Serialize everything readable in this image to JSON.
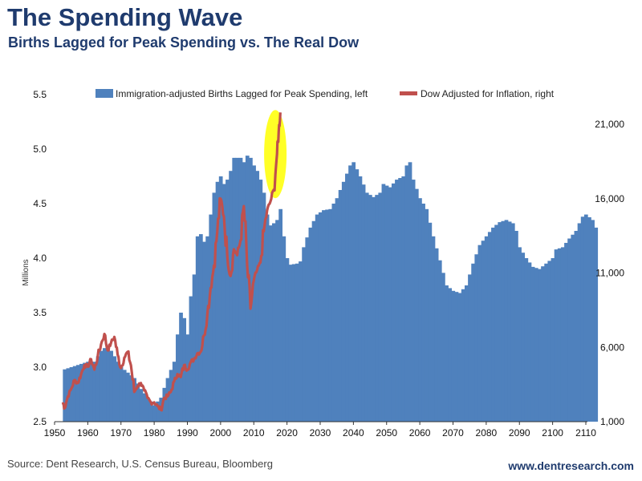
{
  "header": {
    "title": "The Spending Wave",
    "subtitle": "Births Lagged for Peak Spending vs. The Real Dow"
  },
  "footer": {
    "source": "Source: Dent Research, U.S. Census Bureau, Bloomberg",
    "website": "www.dentresearch.com"
  },
  "colors": {
    "title": "#1f3b6e",
    "bars": "#4f81bd",
    "dow_line": "#c0504d",
    "highlight": "#ffff00"
  },
  "chart_data": {
    "type": "bar+line",
    "title": "The Spending Wave",
    "ylabel_left": "Millions",
    "ylim_left": [
      2.5,
      5.5
    ],
    "ylim_right": [
      1000,
      23000
    ],
    "xlim": [
      1950,
      2110
    ],
    "x_ticks": [
      "1950",
      "1960",
      "1970",
      "1980",
      "1990",
      "2000",
      "2010",
      "2020",
      "2030",
      "2040",
      "2050",
      "2060",
      "2070",
      "2080",
      "2090",
      "2100",
      "2110"
    ],
    "y_left_ticks": [
      "2.5",
      "3.0",
      "3.5",
      "4.0",
      "4.5",
      "5.0",
      "5.5"
    ],
    "y_right_ticks": [
      "1,000",
      "6,000",
      "11,000",
      "16,000",
      "21,000"
    ],
    "legend": [
      {
        "label": "Immigration-adjusted Births Lagged for Peak Spending, left",
        "kind": "bar"
      },
      {
        "label": "Dow Adjusted for Inflation, right",
        "kind": "line"
      }
    ],
    "series": [
      {
        "name": "Immigration-adjusted Births Lagged for Peak Spending",
        "axis": "left",
        "kind": "bar",
        "points": [
          [
            1953,
            2.98
          ],
          [
            1955,
            3.0
          ],
          [
            1957,
            3.02
          ],
          [
            1960,
            3.05
          ],
          [
            1962,
            3.05
          ],
          [
            1964,
            3.15
          ],
          [
            1966,
            3.2
          ],
          [
            1968,
            3.1
          ],
          [
            1970,
            3.0
          ],
          [
            1972,
            2.95
          ],
          [
            1974,
            2.9
          ],
          [
            1976,
            2.8
          ],
          [
            1978,
            2.72
          ],
          [
            1980,
            2.65
          ],
          [
            1982,
            2.72
          ],
          [
            1984,
            2.9
          ],
          [
            1986,
            3.05
          ],
          [
            1987,
            3.3
          ],
          [
            1988,
            3.5
          ],
          [
            1989,
            3.45
          ],
          [
            1990,
            3.3
          ],
          [
            1991,
            3.65
          ],
          [
            1992,
            3.85
          ],
          [
            1993,
            4.2
          ],
          [
            1994,
            4.22
          ],
          [
            1995,
            4.15
          ],
          [
            1996,
            4.2
          ],
          [
            1997,
            4.4
          ],
          [
            1998,
            4.6
          ],
          [
            1999,
            4.7
          ],
          [
            2000,
            4.75
          ],
          [
            2001,
            4.68
          ],
          [
            2002,
            4.72
          ],
          [
            2003,
            4.8
          ],
          [
            2004,
            4.92
          ],
          [
            2006,
            4.92
          ],
          [
            2007,
            4.88
          ],
          [
            2008,
            4.94
          ],
          [
            2009,
            4.92
          ],
          [
            2010,
            4.85
          ],
          [
            2011,
            4.8
          ],
          [
            2012,
            4.72
          ],
          [
            2013,
            4.6
          ],
          [
            2014,
            4.4
          ],
          [
            2015,
            4.3
          ],
          [
            2016,
            4.32
          ],
          [
            2017,
            4.35
          ],
          [
            2018,
            4.45
          ],
          [
            2019,
            4.2
          ],
          [
            2020,
            4.0
          ],
          [
            2021,
            3.94
          ],
          [
            2023,
            3.95
          ],
          [
            2024,
            3.97
          ],
          [
            2025,
            4.1
          ],
          [
            2027,
            4.28
          ],
          [
            2029,
            4.4
          ],
          [
            2031,
            4.44
          ],
          [
            2033,
            4.45
          ],
          [
            2035,
            4.55
          ],
          [
            2037,
            4.7
          ],
          [
            2039,
            4.85
          ],
          [
            2040,
            4.88
          ],
          [
            2042,
            4.75
          ],
          [
            2044,
            4.6
          ],
          [
            2046,
            4.56
          ],
          [
            2048,
            4.6
          ],
          [
            2049,
            4.68
          ],
          [
            2051,
            4.65
          ],
          [
            2053,
            4.72
          ],
          [
            2055,
            4.75
          ],
          [
            2056,
            4.85
          ],
          [
            2057,
            4.88
          ],
          [
            2058,
            4.72
          ],
          [
            2060,
            4.55
          ],
          [
            2062,
            4.45
          ],
          [
            2064,
            4.2
          ],
          [
            2066,
            3.98
          ],
          [
            2068,
            3.75
          ],
          [
            2070,
            3.7
          ],
          [
            2072,
            3.68
          ],
          [
            2074,
            3.75
          ],
          [
            2076,
            3.95
          ],
          [
            2078,
            4.12
          ],
          [
            2080,
            4.2
          ],
          [
            2082,
            4.28
          ],
          [
            2084,
            4.33
          ],
          [
            2086,
            4.35
          ],
          [
            2088,
            4.32
          ],
          [
            2089,
            4.25
          ],
          [
            2090,
            4.1
          ],
          [
            2092,
            4.0
          ],
          [
            2094,
            3.92
          ],
          [
            2096,
            3.9
          ],
          [
            2098,
            3.95
          ],
          [
            2100,
            4.0
          ],
          [
            2101,
            4.08
          ],
          [
            2103,
            4.1
          ],
          [
            2105,
            4.18
          ],
          [
            2107,
            4.25
          ],
          [
            2108,
            4.32
          ],
          [
            2109,
            4.38
          ],
          [
            2110,
            4.4
          ],
          [
            2112,
            4.35
          ],
          [
            2113,
            4.28
          ]
        ]
      },
      {
        "name": "Dow Adjusted for Inflation",
        "axis": "right",
        "kind": "line",
        "points": [
          [
            1952.5,
            2300
          ],
          [
            1953,
            1900
          ],
          [
            1954,
            2700
          ],
          [
            1955,
            3200
          ],
          [
            1956,
            3800
          ],
          [
            1957,
            3600
          ],
          [
            1958,
            4200
          ],
          [
            1959,
            4800
          ],
          [
            1960,
            4700
          ],
          [
            1961,
            5200
          ],
          [
            1962,
            4500
          ],
          [
            1963,
            5400
          ],
          [
            1964,
            6200
          ],
          [
            1965,
            6900
          ],
          [
            1966,
            5800
          ],
          [
            1967,
            6300
          ],
          [
            1968,
            6700
          ],
          [
            1969,
            5500
          ],
          [
            1970,
            4600
          ],
          [
            1971,
            5300
          ],
          [
            1972,
            5700
          ],
          [
            1973,
            4800
          ],
          [
            1974,
            3000
          ],
          [
            1975,
            3400
          ],
          [
            1976,
            3600
          ],
          [
            1977,
            3100
          ],
          [
            1978,
            2600
          ],
          [
            1979,
            2300
          ],
          [
            1980,
            2300
          ],
          [
            1981,
            2050
          ],
          [
            1982,
            1800
          ],
          [
            1983,
            2600
          ],
          [
            1984,
            2700
          ],
          [
            1985,
            3000
          ],
          [
            1986,
            3700
          ],
          [
            1987,
            4200
          ],
          [
            1988,
            4000
          ],
          [
            1989,
            4800
          ],
          [
            1990,
            4500
          ],
          [
            1991,
            5000
          ],
          [
            1992,
            5200
          ],
          [
            1993,
            5600
          ],
          [
            1994,
            5700
          ],
          [
            1995,
            6800
          ],
          [
            1996,
            8200
          ],
          [
            1997,
            10000
          ],
          [
            1998,
            11500
          ],
          [
            1999,
            13800
          ],
          [
            2000,
            16000
          ],
          [
            2001,
            14800
          ],
          [
            2002,
            12200
          ],
          [
            2003,
            10800
          ],
          [
            2004,
            12600
          ],
          [
            2005,
            12200
          ],
          [
            2006,
            13200
          ],
          [
            2007,
            15500
          ],
          [
            2008,
            11500
          ],
          [
            2009,
            8600
          ],
          [
            2010,
            10500
          ],
          [
            2011,
            11200
          ],
          [
            2012,
            11700
          ],
          [
            2013,
            13800
          ],
          [
            2014,
            15200
          ],
          [
            2015,
            15800
          ],
          [
            2016,
            16600
          ],
          [
            2017,
            19000
          ],
          [
            2017.5,
            20500
          ],
          [
            2018,
            21800
          ]
        ]
      }
    ],
    "annotations": [
      {
        "kind": "ellipse-highlight",
        "x": 2016.5,
        "y": 19000,
        "axis": "right",
        "note": "recent Dow peak highlighted"
      }
    ]
  }
}
